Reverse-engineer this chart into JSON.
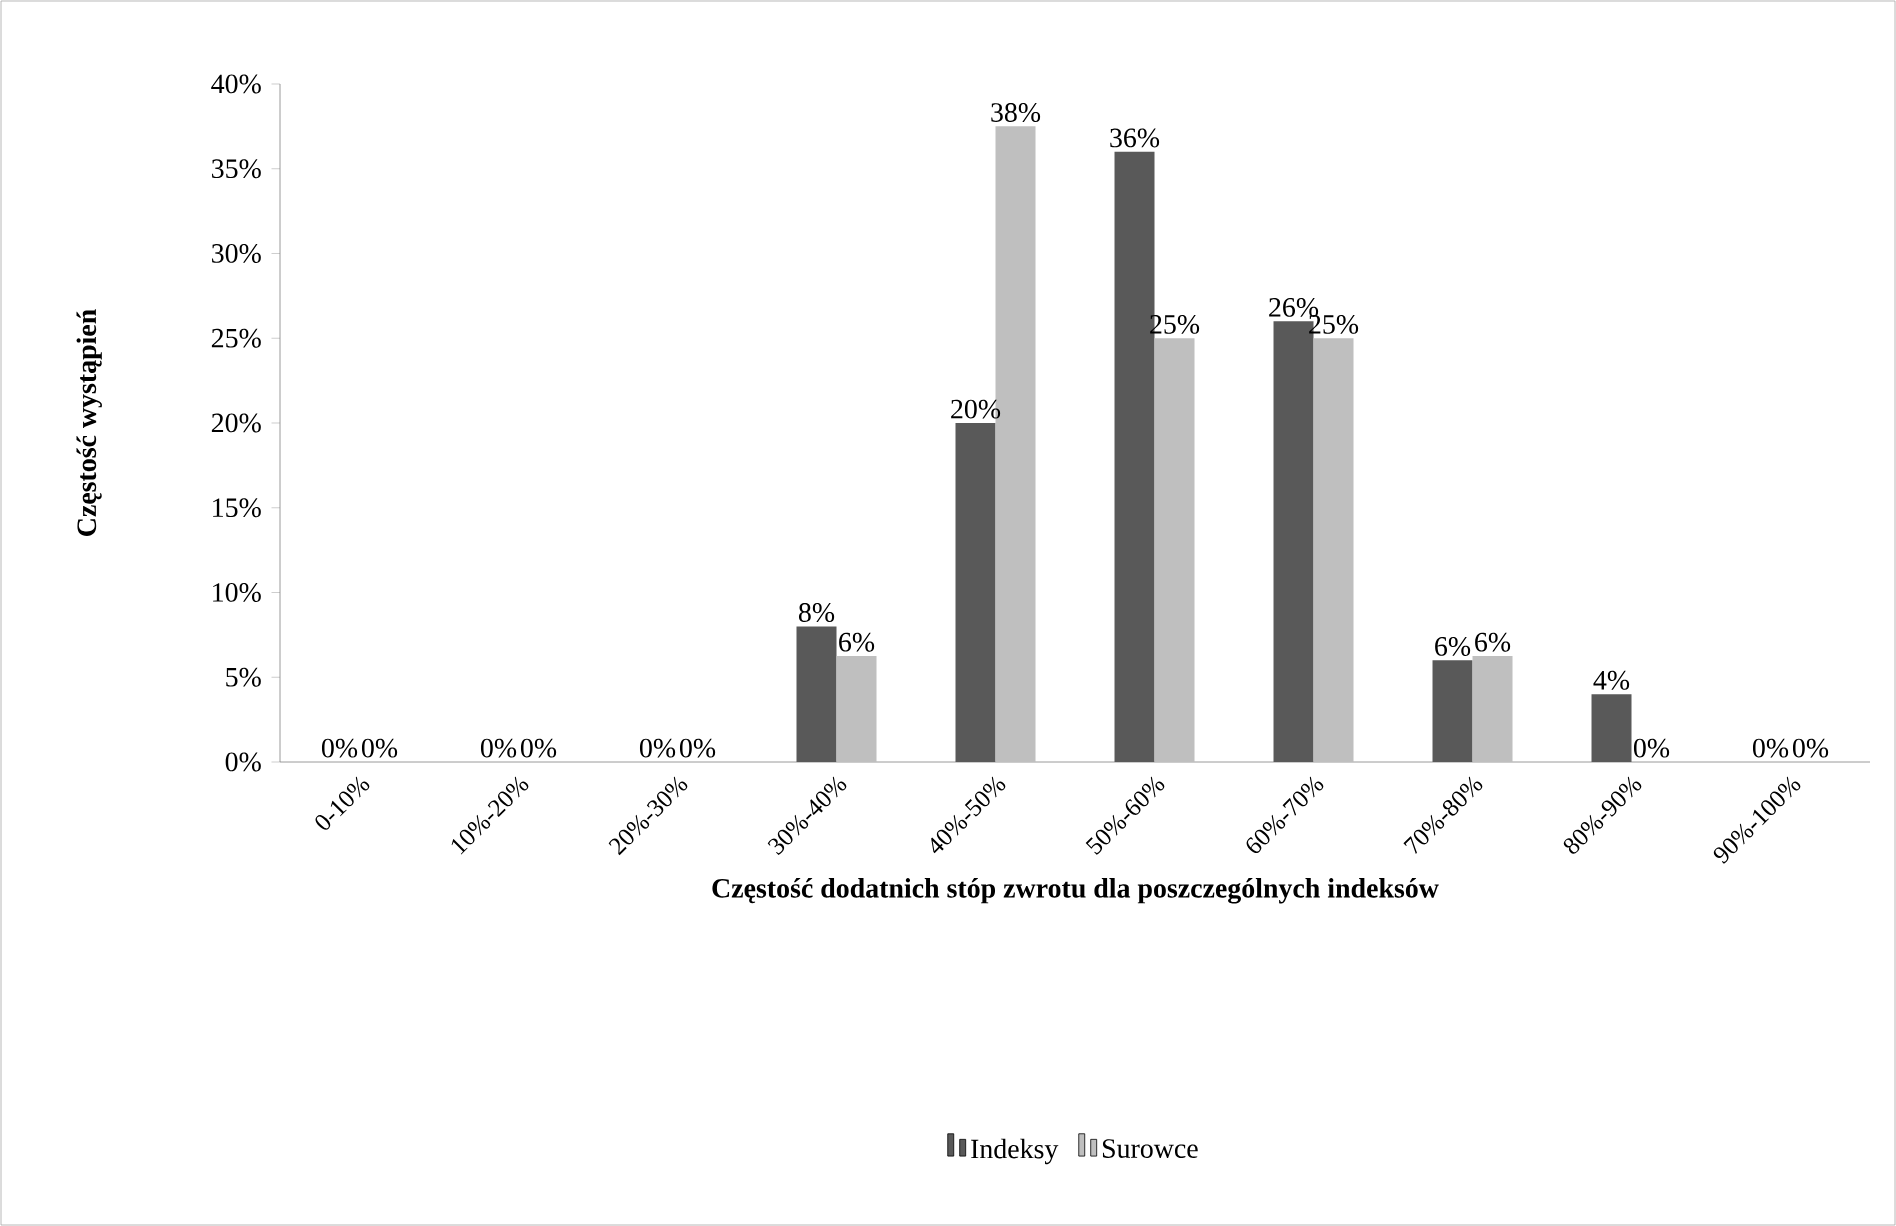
{
  "chart_data": {
    "type": "bar",
    "xlabel": "Częstość dodatnich stóp zwrotu dla poszczególnych indeksów",
    "ylabel": "Częstość wystąpień",
    "categories": [
      "0-10%",
      "10%-20%",
      "20%-30%",
      "30%-40%",
      "40%-50%",
      "50%-60%",
      "60%-70%",
      "70%-80%",
      "80%-90%",
      "90%-100%"
    ],
    "series": [
      {
        "name": "Indeksy",
        "color": "#595959",
        "values": [
          0,
          0,
          0,
          8,
          20,
          36,
          26,
          6,
          4,
          0
        ],
        "value_labels": [
          "0%",
          "0%",
          "0%",
          "8%",
          "20%",
          "36%",
          "26%",
          "6%",
          "4%",
          "0%"
        ]
      },
      {
        "name": "Surowce",
        "color": "#bfbfbf",
        "values": [
          0,
          0,
          0,
          6.25,
          37.5,
          25,
          25,
          6.25,
          0,
          0
        ],
        "value_labels": [
          "0%",
          "0%",
          "0%",
          "6%",
          "38%",
          "25%",
          "25%",
          "6%",
          "0%",
          "0%"
        ]
      }
    ],
    "ylim": [
      0,
      40
    ],
    "yticks": [
      {
        "value": 0,
        "label": "0%"
      },
      {
        "value": 5,
        "label": "5%"
      },
      {
        "value": 10,
        "label": "10%"
      },
      {
        "value": 15,
        "label": "15%"
      },
      {
        "value": 20,
        "label": "20%"
      },
      {
        "value": 25,
        "label": "25%"
      },
      {
        "value": 30,
        "label": "30%"
      },
      {
        "value": 35,
        "label": "35%"
      },
      {
        "value": 40,
        "label": "40%"
      }
    ],
    "legend": "bottom"
  }
}
